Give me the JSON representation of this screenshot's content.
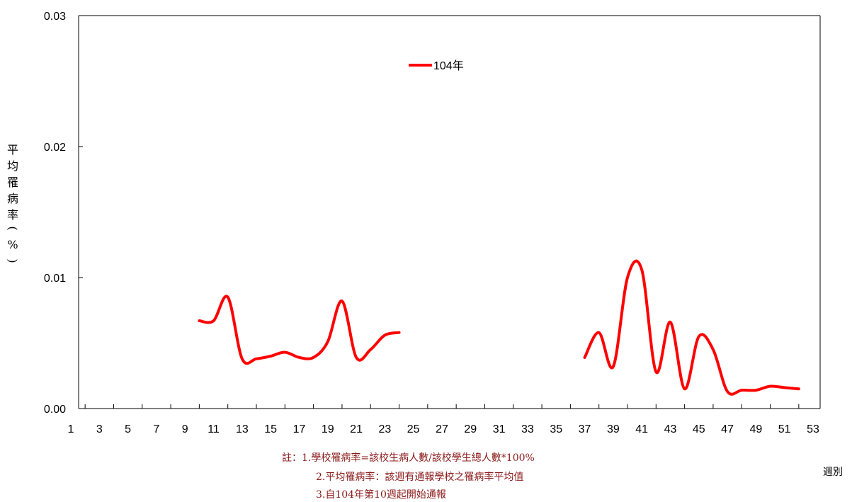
{
  "chart_data": {
    "type": "line",
    "title": "",
    "xlabel": "週別",
    "ylabel": "平均罹病率(%)",
    "ylabel_chars": [
      "平",
      "均",
      "罹",
      "病",
      "率",
      "(",
      "%",
      ")"
    ],
    "xlim": [
      1,
      53
    ],
    "ylim": [
      0,
      0.03
    ],
    "yticks": [
      "0.00",
      "0.01",
      "0.02",
      "0.03"
    ],
    "xticks": [
      "1",
      "3",
      "5",
      "7",
      "9",
      "11",
      "13",
      "15",
      "17",
      "19",
      "21",
      "23",
      "25",
      "27",
      "29",
      "31",
      "33",
      "35",
      "37",
      "39",
      "41",
      "43",
      "45",
      "47",
      "49",
      "51",
      "53"
    ],
    "grid": false,
    "legend_position": "top-center",
    "series": [
      {
        "name": "104年",
        "color": "#ff0000",
        "segments": [
          [
            [
              10,
              0.0067
            ],
            [
              11,
              0.0067
            ],
            [
              12,
              0.0085
            ],
            [
              13,
              0.0038
            ],
            [
              14,
              0.0038
            ],
            [
              15,
              0.004
            ],
            [
              16,
              0.0043
            ],
            [
              17,
              0.0039
            ],
            [
              18,
              0.0039
            ],
            [
              19,
              0.0051
            ],
            [
              20,
              0.0082
            ],
            [
              21,
              0.0039
            ],
            [
              22,
              0.0045
            ],
            [
              23,
              0.0056
            ],
            [
              24,
              0.0058
            ]
          ],
          [
            [
              37,
              0.0039
            ],
            [
              38,
              0.0058
            ],
            [
              39,
              0.0032
            ],
            [
              40,
              0.01
            ],
            [
              41,
              0.0106
            ],
            [
              42,
              0.0028
            ],
            [
              43,
              0.0066
            ],
            [
              44,
              0.0015
            ],
            [
              45,
              0.0055
            ],
            [
              46,
              0.0045
            ],
            [
              47,
              0.0013
            ],
            [
              48,
              0.0014
            ],
            [
              49,
              0.0014
            ],
            [
              50,
              0.0017
            ],
            [
              51,
              0.0016
            ],
            [
              52,
              0.0015
            ]
          ]
        ]
      }
    ]
  },
  "notes": [
    "註：1.學校罹病率=該校生病人數/該校學生總人數*100%",
    "2.平均罹病率：該週有通報學校之罹病率平均值",
    "3.自104年第10週起開始通報"
  ]
}
